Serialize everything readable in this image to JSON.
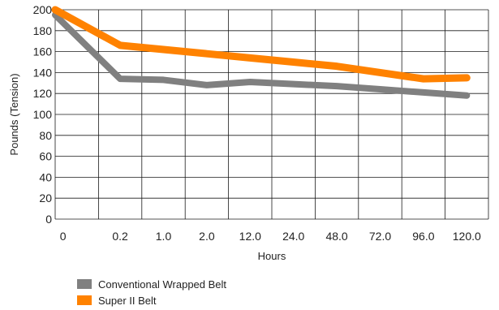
{
  "chart_data": {
    "type": "line",
    "title": "",
    "xlabel": "Hours",
    "ylabel": "Pounds (Tension)",
    "categories": [
      "0",
      "0.2",
      "1.0",
      "2.0",
      "12.0",
      "24.0",
      "48.0",
      "72.0",
      "96.0",
      "120.0"
    ],
    "yticks": [
      "0",
      "20",
      "40",
      "60",
      "80",
      "100",
      "120",
      "140",
      "160",
      "180",
      "200"
    ],
    "ylim": [
      0,
      200
    ],
    "grid": true,
    "legend_position": "bottom-left",
    "series": [
      {
        "name": "Conventional Wrapped Belt",
        "color": "#808080",
        "values": [
          195,
          134,
          133,
          128,
          131,
          129,
          127,
          124,
          121,
          118
        ]
      },
      {
        "name": "Super II Belt",
        "color": "#FF8200",
        "values": [
          200,
          166,
          162,
          158,
          154,
          150,
          146,
          140,
          134,
          135
        ]
      }
    ]
  }
}
